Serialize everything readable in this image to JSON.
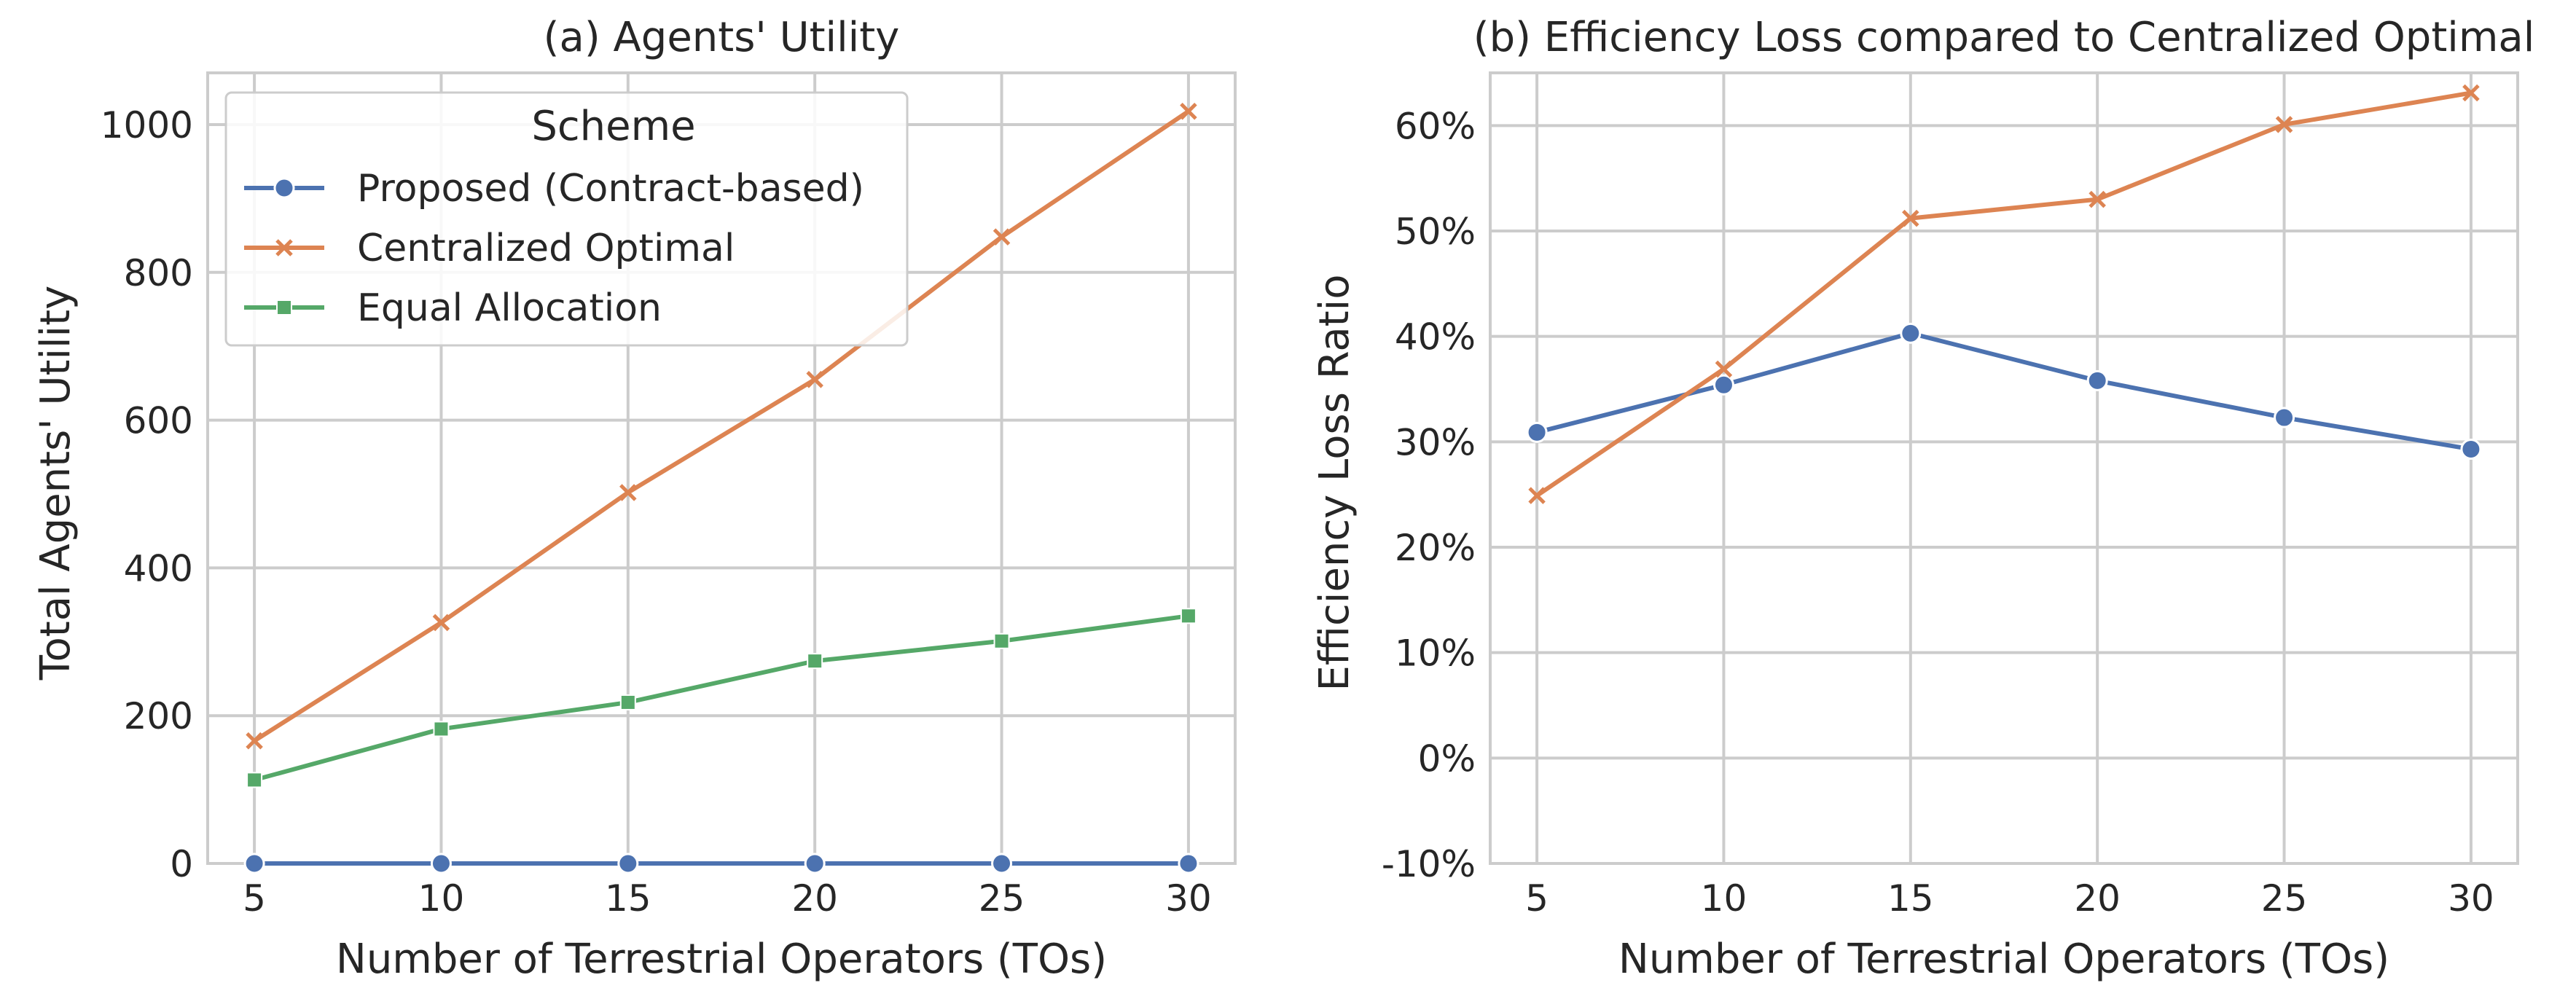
{
  "colors": {
    "proposed": "#4c72b0",
    "centralized": "#dd8452",
    "equal": "#55a868",
    "grid": "#cccccc",
    "spine": "#cccccc",
    "text": "#262626"
  },
  "legend": {
    "title": "Scheme",
    "entries": [
      {
        "label": "Proposed (Contract-based)",
        "marker": "circle",
        "color_key": "proposed"
      },
      {
        "label": "Centralized Optimal",
        "marker": "x",
        "color_key": "centralized"
      },
      {
        "label": "Equal Allocation",
        "marker": "square",
        "color_key": "equal"
      }
    ],
    "placement": "upper-left"
  },
  "chart_data": [
    {
      "type": "line",
      "title": "(a) Agents' Utility",
      "xlabel": "Number of Terrestrial Operators (TOs)",
      "ylabel": "Total Agents' Utility",
      "x": [
        5,
        10,
        15,
        20,
        25,
        30
      ],
      "xticks": [
        "5",
        "10",
        "15",
        "20",
        "25",
        "30"
      ],
      "yticks": [
        "0",
        "200",
        "400",
        "600",
        "800",
        "1000"
      ],
      "xlim": [
        3.75,
        31.25
      ],
      "ylim": [
        0,
        1070
      ],
      "grid": true,
      "series": [
        {
          "name": "Proposed (Contract-based)",
          "marker": "circle",
          "color_key": "proposed",
          "values": [
            0,
            0,
            0,
            0,
            0,
            0
          ]
        },
        {
          "name": "Centralized Optimal",
          "marker": "x",
          "color_key": "centralized",
          "values": [
            166,
            326,
            502,
            655,
            848,
            1018
          ]
        },
        {
          "name": "Equal Allocation",
          "marker": "square",
          "color_key": "equal",
          "values": [
            113,
            182,
            218,
            274,
            301,
            335
          ]
        }
      ]
    },
    {
      "type": "line",
      "title": "(b) Efficiency Loss compared to Centralized Optimal",
      "xlabel": "Number of Terrestrial Operators (TOs)",
      "ylabel": "Efficiency Loss Ratio",
      "x": [
        5,
        10,
        15,
        20,
        25,
        30
      ],
      "xticks": [
        "5",
        "10",
        "15",
        "20",
        "25",
        "30"
      ],
      "yticks": [
        "-10%",
        "0%",
        "10%",
        "20%",
        "30%",
        "40%",
        "50%",
        "60%"
      ],
      "ytick_values": [
        -10,
        0,
        10,
        20,
        30,
        40,
        50,
        60
      ],
      "xlim": [
        3.75,
        31.25
      ],
      "ylim": [
        -10,
        65
      ],
      "grid": true,
      "series": [
        {
          "name": "Proposed (Contract-based)",
          "marker": "circle",
          "color_key": "proposed",
          "values": [
            30.9,
            35.4,
            40.3,
            35.8,
            32.3,
            29.3
          ]
        },
        {
          "name": "Centralized Optimal",
          "marker": "x",
          "color_key": "centralized",
          "values": [
            24.9,
            36.9,
            51.2,
            53.0,
            60.1,
            63.1
          ]
        }
      ]
    }
  ]
}
